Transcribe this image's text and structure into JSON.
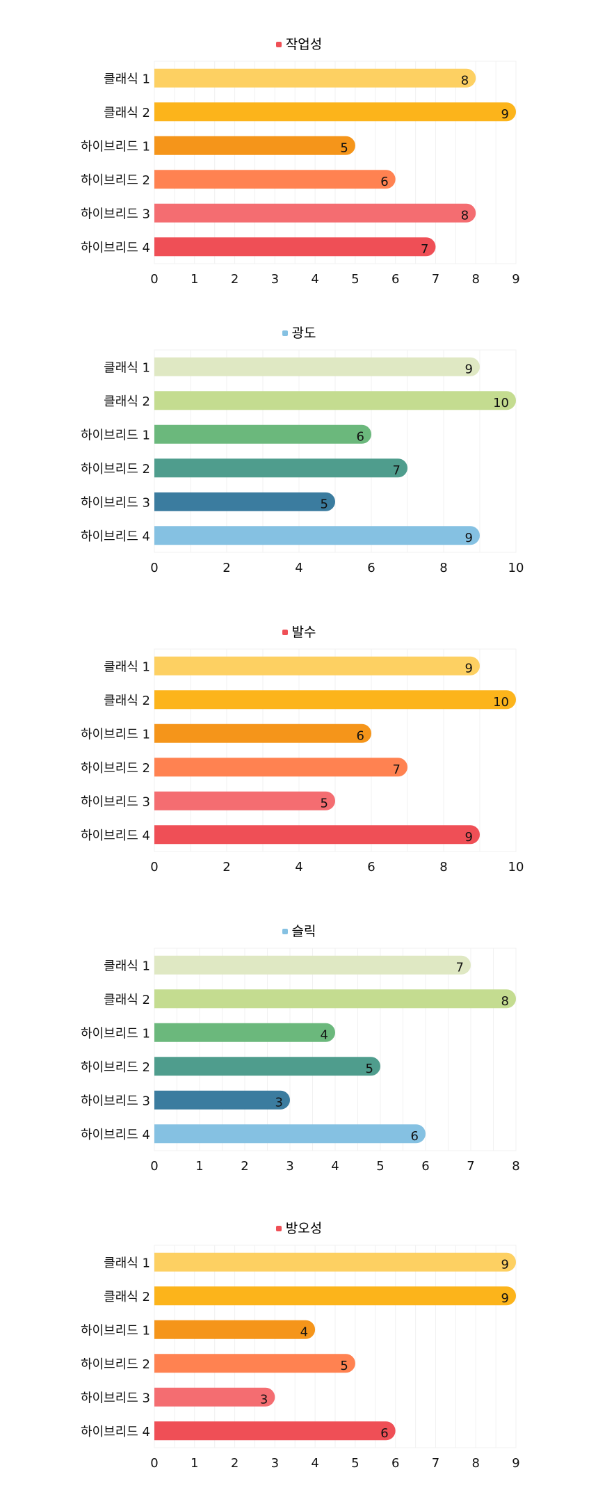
{
  "chart_data": [
    {
      "type": "bar",
      "orientation": "horizontal",
      "title": "작업성",
      "legend": {
        "name": "작업성",
        "color": "#ef4f56",
        "placement": "top-center"
      },
      "categories": [
        "클래식 1",
        "클래식 2",
        "하이브리드 1",
        "하이브리드 2",
        "하이브리드 3",
        "하이브리드 4"
      ],
      "values": [
        8,
        9,
        5,
        6,
        8,
        7
      ],
      "colors": [
        "#fdd062",
        "#fcb41b",
        "#f5951a",
        "#ff8251",
        "#f46d71",
        "#ef4f56"
      ],
      "xlim": [
        0,
        9
      ],
      "xticks": [
        0,
        1,
        2,
        3,
        4,
        5,
        6,
        7,
        8,
        9
      ],
      "grid": true
    },
    {
      "type": "bar",
      "orientation": "horizontal",
      "title": "광도",
      "legend": {
        "name": "광도",
        "color": "#85c1e2",
        "placement": "top-center"
      },
      "categories": [
        "클래식 1",
        "클래식 2",
        "하이브리드 1",
        "하이브리드 2",
        "하이브리드 3",
        "하이브리드 4"
      ],
      "values": [
        9,
        10,
        6,
        7,
        5,
        9
      ],
      "colors": [
        "#dfe8c3",
        "#c4dc90",
        "#6bb87c",
        "#4f9d8d",
        "#3b7c9f",
        "#85c1e2"
      ],
      "xlim": [
        0,
        10
      ],
      "xticks": [
        0,
        2,
        4,
        6,
        8,
        10
      ],
      "grid": true
    },
    {
      "type": "bar",
      "orientation": "horizontal",
      "title": "발수",
      "legend": {
        "name": "발수",
        "color": "#ef4f56",
        "placement": "top-center"
      },
      "categories": [
        "클래식 1",
        "클래식 2",
        "하이브리드 1",
        "하이브리드 2",
        "하이브리드 3",
        "하이브리드 4"
      ],
      "values": [
        9,
        10,
        6,
        7,
        5,
        9
      ],
      "colors": [
        "#fdd062",
        "#fcb41b",
        "#f5951a",
        "#ff8251",
        "#f46d71",
        "#ef4f56"
      ],
      "xlim": [
        0,
        10
      ],
      "xticks": [
        0,
        2,
        4,
        6,
        8,
        10
      ],
      "grid": true
    },
    {
      "type": "bar",
      "orientation": "horizontal",
      "title": "슬릭",
      "legend": {
        "name": "슬릭",
        "color": "#85c1e2",
        "placement": "top-center"
      },
      "categories": [
        "클래식 1",
        "클래식 2",
        "하이브리드 1",
        "하이브리드 2",
        "하이브리드 3",
        "하이브리드 4"
      ],
      "values": [
        7,
        8,
        4,
        5,
        3,
        6
      ],
      "colors": [
        "#dfe8c3",
        "#c4dc90",
        "#6bb87c",
        "#4f9d8d",
        "#3b7c9f",
        "#85c1e2"
      ],
      "xlim": [
        0,
        8
      ],
      "xticks": [
        0,
        1,
        2,
        3,
        4,
        5,
        6,
        7,
        8
      ],
      "grid": true
    },
    {
      "type": "bar",
      "orientation": "horizontal",
      "title": "방오성",
      "legend": {
        "name": "방오성",
        "color": "#ef4f56",
        "placement": "top-center"
      },
      "categories": [
        "클래식 1",
        "클래식 2",
        "하이브리드 1",
        "하이브리드 2",
        "하이브리드 3",
        "하이브리드 4"
      ],
      "values": [
        9,
        9,
        4,
        5,
        3,
        6
      ],
      "colors": [
        "#fdd062",
        "#fcb41b",
        "#f5951a",
        "#ff8251",
        "#f46d71",
        "#ef4f56"
      ],
      "xlim": [
        0,
        9
      ],
      "xticks": [
        0,
        1,
        2,
        3,
        4,
        5,
        6,
        7,
        8,
        9
      ],
      "grid": true
    }
  ]
}
